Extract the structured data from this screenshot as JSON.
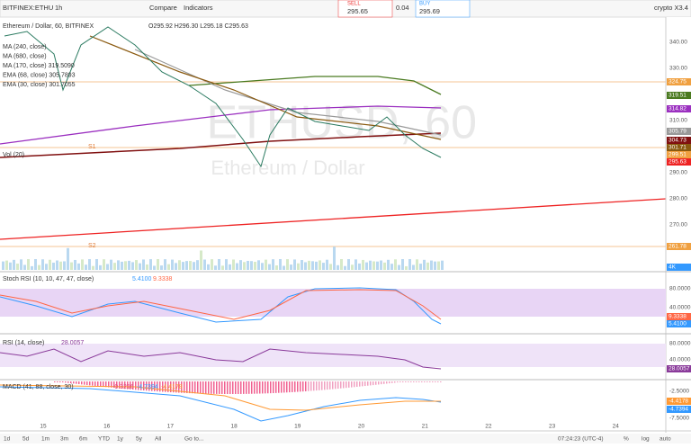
{
  "toolbar": {
    "symbol": "BITFINEX:ETHU",
    "interval": "1h",
    "compare": "Compare",
    "indicators": "Indicators",
    "sell_label": "SELL",
    "sell_price": "295.65",
    "spread": "0.04",
    "buy_label": "BUY",
    "buy_price": "295.69",
    "layout": "crypto X3.4"
  },
  "legend": {
    "title": "Ethereum / Dollar, 60, BITFINEX",
    "ohlc": "O295.92 H296.30 L295.18 C295.63",
    "indicators": [
      "MA (240, close)",
      "MA (680, close)",
      "MA (170, close)  319.5090",
      "EMA (68, close)  305.7893",
      "EMA (30, close)  301.7055"
    ],
    "volume": "Vol (20)"
  },
  "watermark": {
    "symbol": "ETHUSD, 60",
    "name": "Ethereum / Dollar"
  },
  "levels": {
    "s1": "S1",
    "s2": "S2"
  },
  "price_axis": {
    "ticks": [
      "340.00",
      "330.00",
      "320.00",
      "310.00",
      "300.00",
      "290.00",
      "280.00",
      "270.00"
    ],
    "tags": [
      "324.75",
      "319.51",
      "314.82",
      "305.79",
      "304.73",
      "301.71",
      "299.51",
      "295.63",
      "261.78",
      "4K"
    ]
  },
  "stoch_rsi": {
    "title": "Stoch RSI (10, 10, 47, 47, close)",
    "k": "5.4100",
    "d": "9.3338",
    "ticks": [
      "80.0000",
      "40.0000"
    ],
    "tags": [
      "9.3338",
      "5.4100"
    ]
  },
  "rsi": {
    "title": "RSI (14, close)",
    "value": "28.0057",
    "ticks": [
      "80.0000",
      "40.0000"
    ],
    "tag": "28.0057"
  },
  "macd": {
    "title": "MACD (41, 88, close, 30)",
    "values": [
      "-0.3216",
      "-4.7394",
      "-4.4178"
    ],
    "ticks": [
      "-2.5000",
      "-7.5000"
    ],
    "tags": [
      "-4.4178",
      "-4.7394"
    ]
  },
  "date_axis": [
    "15",
    "16",
    "17",
    "18",
    "19",
    "20",
    "21",
    "22",
    "23",
    "24"
  ],
  "bottom_bar": {
    "ranges": [
      "1d",
      "5d",
      "1m",
      "3m",
      "6m",
      "YTD",
      "1y",
      "5y",
      "All"
    ],
    "goto": "Go to...",
    "clock": "07:24:23 (UTC-4)",
    "options": [
      "%",
      "log",
      "auto"
    ]
  }
}
